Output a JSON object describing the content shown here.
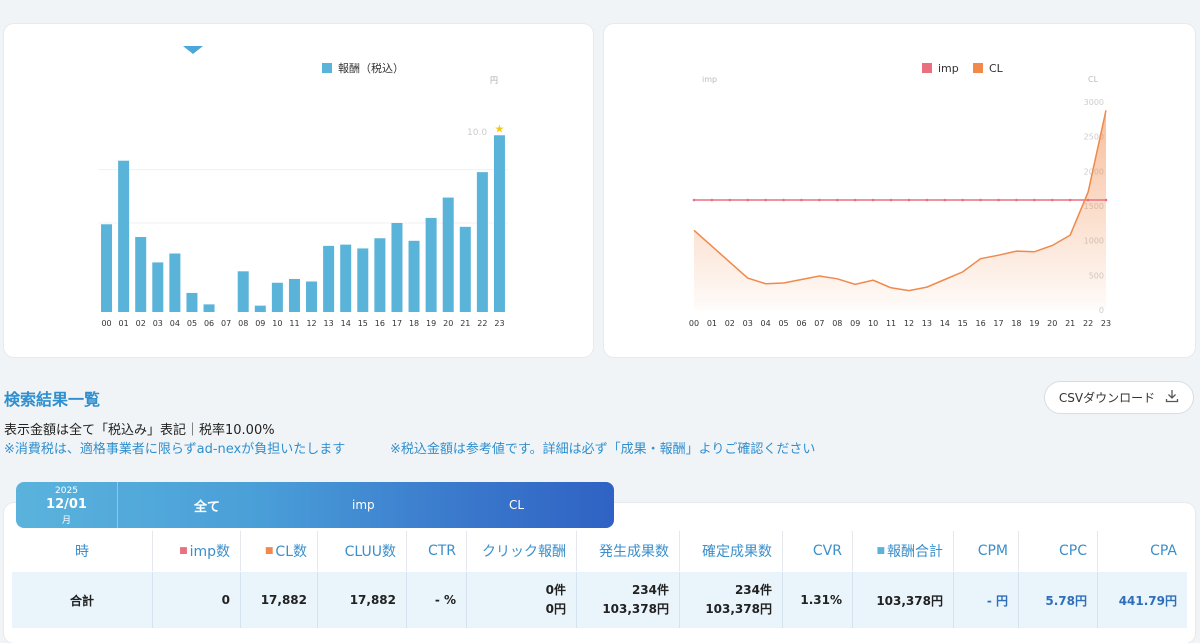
{
  "charts": {
    "left": {
      "legend": "報酬（税込）",
      "unit_label": "円",
      "tick_label": "10.0",
      "color": "#5ab3d8",
      "star_color": "#f5c518"
    },
    "right": {
      "legend_imp": "imp",
      "legend_cl": "CL",
      "left_axis_label": "imp",
      "right_axis_label": "CL",
      "imp_color": "#e9707f",
      "cl_color": "#f0894a",
      "right_ticks": [
        "3000",
        "2500",
        "2000",
        "1500",
        "1000",
        "500",
        "0"
      ]
    }
  },
  "chart_data": [
    {
      "type": "bar",
      "title": "",
      "series": [
        {
          "name": "報酬（税込）",
          "values": [
            6.9,
            11.9,
            5.9,
            3.9,
            4.6,
            1.5,
            0.6,
            0,
            3.2,
            0.5,
            2.3,
            2.6,
            2.4,
            5.2,
            5.3,
            5.0,
            5.8,
            7.0,
            5.6,
            7.4,
            9.0,
            6.7,
            11.0,
            13.9
          ]
        }
      ],
      "categories": [
        "00",
        "01",
        "02",
        "03",
        "04",
        "05",
        "06",
        "07",
        "08",
        "09",
        "10",
        "11",
        "12",
        "13",
        "14",
        "15",
        "16",
        "17",
        "18",
        "19",
        "20",
        "21",
        "22",
        "23"
      ],
      "ylim": [
        0,
        14
      ],
      "highlight_index": 23
    },
    {
      "type": "line",
      "title": "",
      "categories": [
        "00",
        "01",
        "02",
        "03",
        "04",
        "05",
        "06",
        "07",
        "08",
        "09",
        "10",
        "11",
        "12",
        "13",
        "14",
        "15",
        "16",
        "17",
        "18",
        "19",
        "20",
        "21",
        "22",
        "23"
      ],
      "series": [
        {
          "name": "imp",
          "values": [
            0,
            0,
            0,
            0,
            0,
            0,
            0,
            0,
            0,
            0,
            0,
            0,
            0,
            0,
            0,
            0,
            0,
            0,
            0,
            0,
            0,
            0,
            0,
            0
          ]
        },
        {
          "name": "CL",
          "values": [
            1150,
            920,
            690,
            460,
            380,
            390,
            440,
            490,
            450,
            370,
            430,
            320,
            280,
            330,
            440,
            550,
            740,
            790,
            850,
            840,
            930,
            1080,
            1700,
            2880
          ]
        }
      ],
      "ylim": [
        0,
        3000
      ],
      "area_fill": true
    }
  ],
  "section": {
    "title": "検索結果一覧",
    "note1": "表示金額は全て「税込み」表記｜税率10.00%",
    "note2": "※消費税は、適格事業者に限らずad-nexが負担いたします",
    "note3": "※税込金額は参考値です。詳細は必ず「成果・報酬」よりご確認ください",
    "csv_button": "CSVダウンロード",
    "csv_icon": "download-icon"
  },
  "tabs": {
    "year": "2025",
    "date": "12/01",
    "weekday": "月",
    "items": [
      "全て",
      "imp",
      "CL"
    ]
  },
  "table": {
    "headers": [
      "時",
      "imp数",
      "CL数",
      "CLUU数",
      "CTR",
      "クリック報酬",
      "発生成果数",
      "確定成果数",
      "CVR",
      "報酬合計",
      "CPM",
      "CPC",
      "CPA"
    ],
    "total_row": {
      "label": "合計",
      "imp": "0",
      "cl": "17,882",
      "cluu": "17,882",
      "ctr": "- %",
      "click_count": "0件",
      "click_reward": "0円",
      "occur_count": "234件",
      "occur_amount": "103,378円",
      "confirm_count": "234件",
      "confirm_amount": "103,378円",
      "cvr": "1.31%",
      "reward_total": "103,378円",
      "cpm": "- 円",
      "cpc": "5.78円",
      "cpa": "441.79円"
    }
  }
}
